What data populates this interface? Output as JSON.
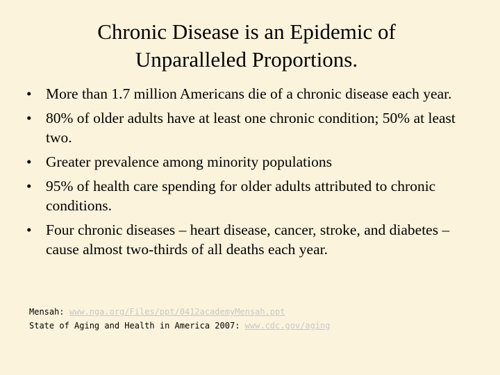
{
  "slide": {
    "title_line1": "Chronic Disease is an Epidemic of",
    "title_line2": "Unparalleled Proportions.",
    "bullet_symbol": "•",
    "bullets": [
      "More than 1.7 million Americans die of a chronic disease each year.",
      "80% of older adults have at least one chronic condition; 50% at least two.",
      "Greater prevalence among minority populations",
      "95% of health care spending for older adults attributed to chronic conditions.",
      "Four chronic diseases – heart disease, cancer, stroke, and diabetes – cause almost two-thirds of all deaths each year."
    ],
    "references": [
      {
        "label": "Mensah: ",
        "link": "www.nga.org/Files/ppt/0412academyMensah.ppt"
      },
      {
        "label": "State of Aging and Health in America 2007: ",
        "link": "www.cdc.gov/aging"
      }
    ]
  }
}
